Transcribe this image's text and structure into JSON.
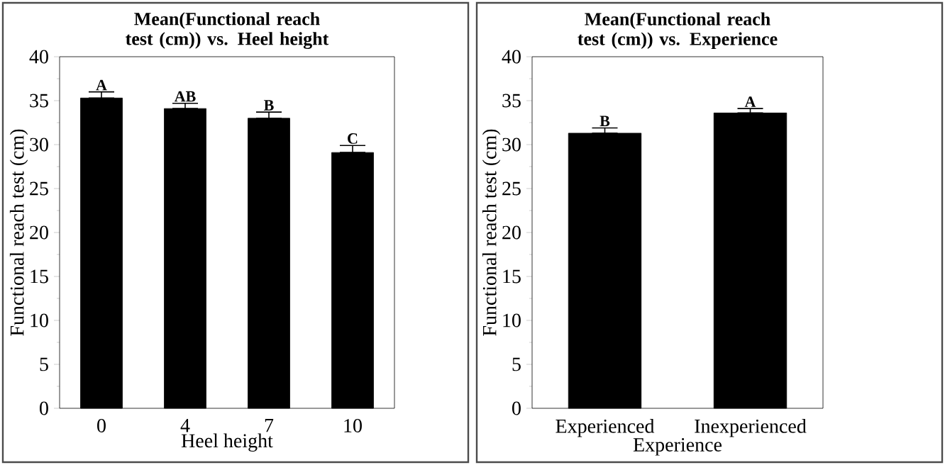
{
  "chart_data": [
    {
      "type": "bar",
      "title": "Mean(Functional reach test (cm)) vs. Heel height",
      "xlabel": "Heel height",
      "ylabel": "Functional reach test (cm)",
      "categories": [
        "0",
        "4",
        "7",
        "10"
      ],
      "values": [
        35.3,
        34.1,
        33.0,
        29.1
      ],
      "color": "#000000",
      "errors": [
        [
          35.3,
          36.0
        ],
        [
          34.1,
          34.7
        ],
        [
          33.0,
          33.7
        ],
        [
          29.1,
          29.9
        ]
      ],
      "ylim": [
        0,
        40
      ],
      "yticks": [
        0,
        5,
        10,
        15,
        20,
        25,
        30,
        35,
        40
      ],
      "annotations": [
        {
          "text": "A",
          "x": "0",
          "y": 36.0
        },
        {
          "text": "AB",
          "x": "4",
          "y": 34.7
        },
        {
          "text": "B",
          "x": "7",
          "y": 33.7
        },
        {
          "text": "C",
          "x": "10",
          "y": 29.9
        }
      ]
    },
    {
      "type": "bar",
      "title": "Mean(Functional reach test (cm)) vs. Experience",
      "xlabel": "Experience",
      "ylabel": "Functional reach test (cm)",
      "categories": [
        "Experienced",
        "Inexperienced"
      ],
      "values": [
        31.3,
        33.6
      ],
      "color": "#000000",
      "errors": [
        [
          31.3,
          31.9
        ],
        [
          33.6,
          34.1
        ]
      ],
      "ylim": [
        0,
        40
      ],
      "yticks": [
        0,
        5,
        10,
        15,
        20,
        25,
        30,
        35,
        40
      ],
      "annotations": [
        {
          "text": "B",
          "x": "Experienced",
          "y": 31.9
        },
        {
          "text": "A",
          "x": "Inexperienced",
          "y": 34.1
        }
      ]
    }
  ]
}
